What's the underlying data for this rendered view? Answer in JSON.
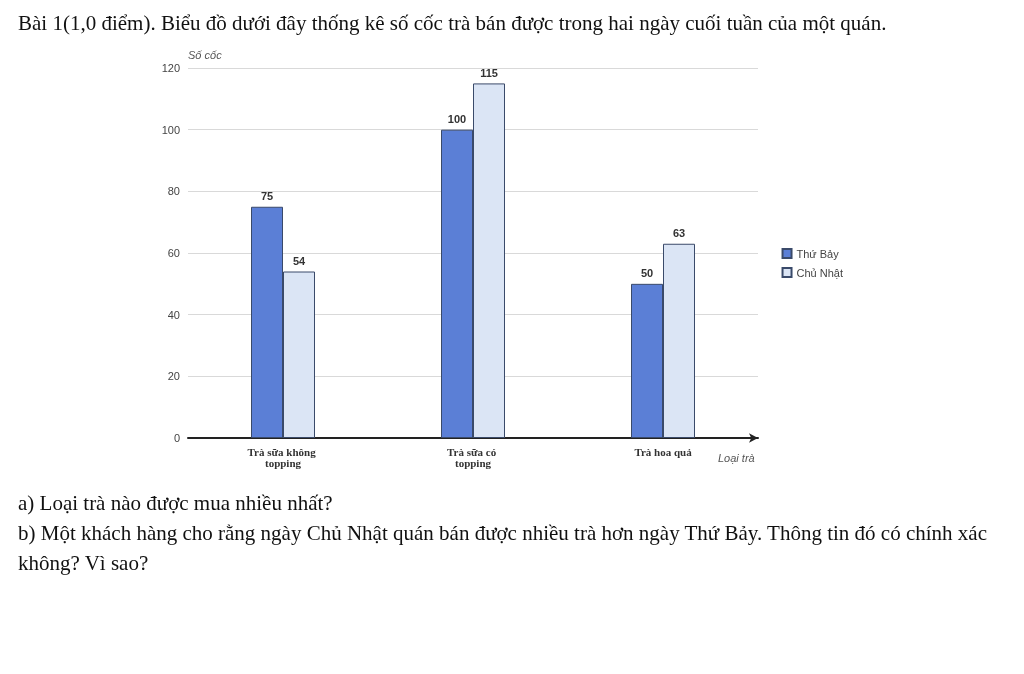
{
  "chart_data": {
    "type": "bar",
    "title": "Bài 1(1,0 điểm). Biểu đồ dưới đây thống kê số cốc trà bán được trong hai ngày cuối tuần của một quán.",
    "ylabel": "Số cốc",
    "xlabel": "Loại trà",
    "categories": [
      "Trà sữa không topping",
      "Trà sữa có topping",
      "Trà hoa quả"
    ],
    "series": [
      {
        "name": "Thứ Bảy",
        "color": "#5b7fd6",
        "values": [
          75,
          100,
          50
        ]
      },
      {
        "name": "Chủ Nhật",
        "color": "#dbe5f5",
        "values": [
          54,
          115,
          63
        ]
      }
    ],
    "ylim": [
      0,
      120
    ],
    "yticks": [
      0,
      20,
      40,
      60,
      80,
      100,
      120
    ],
    "grid": "y",
    "legend": "right",
    "data_labels": true,
    "annotations": [
      "a) Loại trà nào được mua nhiều nhất?",
      "b) Một khách hàng cho rằng ngày Chủ Nhật quán bán được nhiều trà hơn ngày Thứ Bảy. Thông tin đó có chính xác không? Vì sao?"
    ]
  }
}
